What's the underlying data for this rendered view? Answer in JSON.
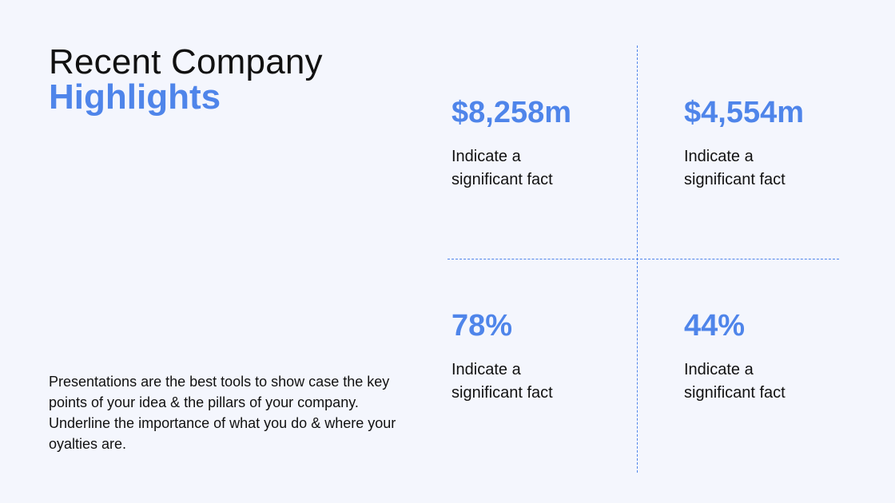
{
  "title": {
    "line1": "Recent Company",
    "line2": "Highlights"
  },
  "description": "Presentations are the best tools to show case the key points of your idea & the pillars of your company. Underline the importance of what you do & where  your  oyalties are.",
  "stats": [
    {
      "value": "$8,258m",
      "caption_line1": "Indicate a",
      "caption_line2": "significant fact"
    },
    {
      "value": "$4,554m",
      "caption_line1": "Indicate a",
      "caption_line2": "significant fact"
    },
    {
      "value": "78%",
      "caption_line1": "Indicate a",
      "caption_line2": "significant fact"
    },
    {
      "value": "44%",
      "caption_line1": "Indicate a",
      "caption_line2": "significant fact"
    }
  ],
  "colors": {
    "accent": "#4f85ea",
    "background": "#f4f6fd",
    "text": "#111111"
  }
}
